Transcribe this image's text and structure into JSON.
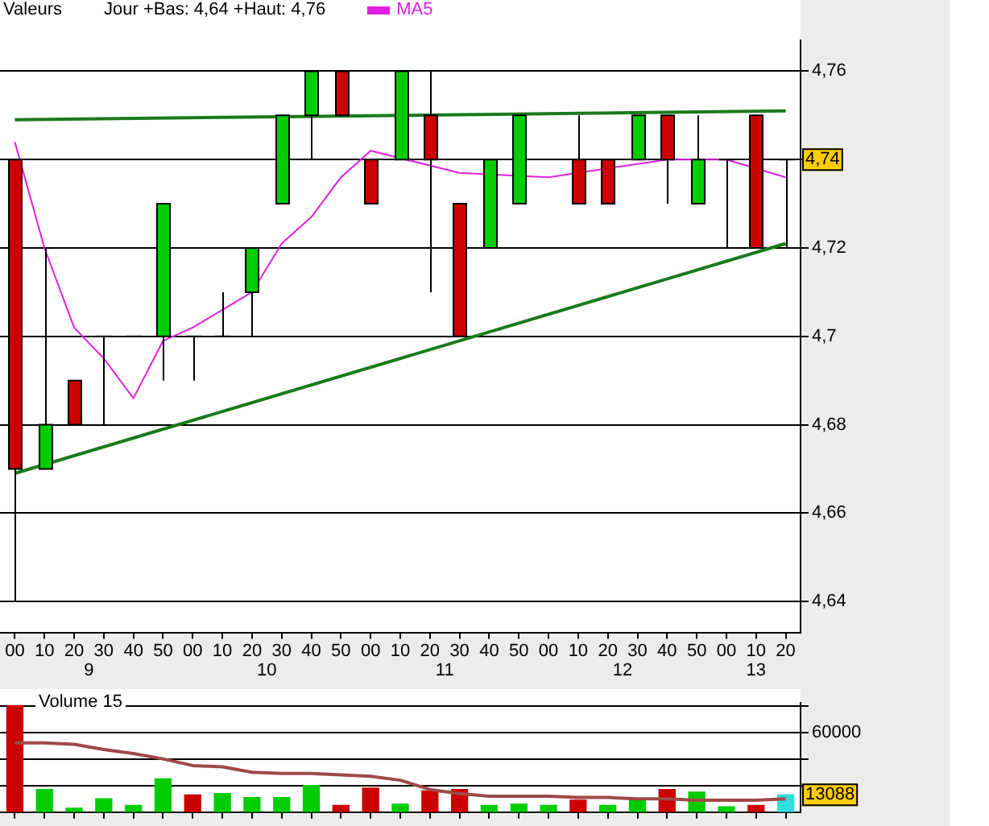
{
  "chart_data": [
    {
      "type": "candlestick",
      "title": "Valeurs",
      "subtitle": "Jour +Bas: 4,64 +Haut: 4,76",
      "legend": "top left",
      "grid": "y",
      "marker": "none",
      "categories": [
        "00",
        "10",
        "20",
        "30",
        "40",
        "50",
        "00",
        "10",
        "20",
        "30",
        "40",
        "50",
        "00",
        "10",
        "20",
        "30",
        "40",
        "50",
        "00",
        "10",
        "20",
        "30",
        "40",
        "50",
        "00",
        "10",
        "20"
      ],
      "ylim": [
        4.633,
        4.767
      ],
      "yticks": [
        {
          "value": 4.64,
          "label": "4,64"
        },
        {
          "value": 4.66,
          "label": "4,66"
        },
        {
          "value": 4.68,
          "label": "4,68"
        },
        {
          "value": 4.7,
          "label": "4,7"
        },
        {
          "value": 4.72,
          "label": "4,72"
        },
        {
          "value": 4.74,
          "label": null
        },
        {
          "value": 4.76,
          "label": "4,76"
        }
      ],
      "annotations": [
        "9",
        "10",
        "11",
        "12",
        "13",
        {
          "text": "4,74",
          "y": 4.74
        }
      ],
      "series": [
        {
          "ohlc": [
            [
              4.74,
              4.74,
              4.64,
              4.67
            ],
            [
              4.67,
              4.72,
              4.67,
              4.68
            ],
            [
              4.69,
              4.69,
              4.68,
              4.68
            ],
            [
              4.7,
              4.7,
              4.68,
              4.7
            ],
            [
              4.7,
              4.7,
              4.7,
              4.7
            ],
            [
              4.7,
              4.73,
              4.69,
              4.73
            ],
            [
              4.7,
              4.7,
              4.69,
              4.7
            ],
            [
              4.7,
              4.71,
              4.7,
              4.7
            ],
            [
              4.71,
              4.72,
              4.7,
              4.72
            ],
            [
              4.73,
              4.75,
              4.73,
              4.75
            ],
            [
              4.75,
              4.76,
              4.74,
              4.76
            ],
            [
              4.76,
              4.76,
              4.75,
              4.75
            ],
            [
              4.74,
              4.74,
              4.73,
              4.73
            ],
            [
              4.74,
              4.76,
              4.74,
              4.76
            ],
            [
              4.75,
              4.76,
              4.71,
              4.74
            ],
            [
              4.73,
              4.73,
              4.7,
              4.7
            ],
            [
              4.72,
              4.74,
              4.72,
              4.74
            ],
            [
              4.73,
              4.75,
              4.73,
              4.75
            ],
            null,
            [
              4.74,
              4.75,
              4.73,
              4.73
            ],
            [
              4.74,
              4.74,
              4.73,
              4.73
            ],
            [
              4.74,
              4.75,
              4.74,
              4.75
            ],
            [
              4.75,
              4.75,
              4.73,
              4.74
            ],
            [
              4.73,
              4.75,
              4.73,
              4.74
            ],
            [
              4.74,
              4.74,
              4.72,
              4.74
            ],
            [
              4.75,
              4.75,
              4.72,
              4.72
            ],
            [
              4.74,
              4.74,
              4.72,
              4.74
            ]
          ],
          "colors": [
            "#cc0000",
            "#00cc00",
            "#cc0000",
            null,
            null,
            "#00cc00",
            null,
            null,
            "#00cc00",
            "#00cc00",
            "#00cc00",
            "#cc0000",
            "#cc0000",
            "#00cc00",
            "#cc0000",
            "#cc0000",
            "#00cc00",
            "#00cc00",
            null,
            "#cc0000",
            "#cc0000",
            "#00cc00",
            "#cc0000",
            "#00cc00",
            null,
            "#cc0000",
            null
          ]
        },
        {
          "type": "line",
          "name": "MA5",
          "color": "#e020e0",
          "values": [
            4.744,
            4.72,
            4.702,
            4.695,
            4.686,
            4.699,
            4.702,
            4.706,
            4.71,
            4.721,
            4.727,
            4.736,
            4.742,
            null,
            null,
            4.737,
            null,
            null,
            4.736,
            null,
            null,
            null,
            4.74,
            null,
            4.74,
            null,
            4.736
          ]
        },
        {
          "type": "line",
          "color": "#1a7a1a",
          "values": [
            4.749,
            null,
            null,
            null,
            null,
            null,
            null,
            null,
            null,
            null,
            null,
            null,
            null,
            null,
            null,
            null,
            null,
            null,
            null,
            null,
            null,
            null,
            null,
            null,
            null,
            null,
            4.751
          ]
        },
        {
          "type": "line",
          "color": "#1a7a1a",
          "values": [
            4.669,
            null,
            null,
            null,
            null,
            null,
            null,
            null,
            null,
            null,
            null,
            null,
            null,
            null,
            null,
            null,
            null,
            null,
            null,
            null,
            null,
            null,
            null,
            null,
            null,
            null,
            4.721
          ]
        }
      ]
    },
    {
      "type": "bar",
      "title": "Volume 15",
      "grid": "y",
      "marker": "none",
      "tick_labels": "y",
      "categories": [
        "00",
        "10",
        "20",
        "30",
        "40",
        "50",
        "00",
        "10",
        "20",
        "30",
        "40",
        "50",
        "00",
        "10",
        "20",
        "30",
        "40",
        "50",
        "00",
        "10",
        "20",
        "30",
        "40",
        "50",
        "00",
        "10",
        "20"
      ],
      "ylim": [
        0,
        82000
      ],
      "yticks": [
        {
          "value": 20000,
          "label": null
        },
        {
          "value": 40000,
          "label": null
        },
        60000,
        {
          "value": 80000,
          "label": null
        }
      ],
      "annotations": [
        {
          "text": "13088",
          "y": 13088
        }
      ],
      "series": [
        {
          "values": [
            80000,
            17000,
            3000,
            10000,
            5000,
            25000,
            13000,
            14000,
            11000,
            11000,
            20000,
            5000,
            18000,
            6000,
            16000,
            17000,
            5000,
            6000,
            5000,
            9000,
            5000,
            10000,
            17000,
            15000,
            4000,
            5000,
            13088
          ],
          "colors": [
            "#cc0000",
            "#00cc00",
            "#00cc00",
            "#00cc00",
            "#00cc00",
            "#00cc00",
            "#cc0000",
            "#00cc00",
            "#00cc00",
            "#00cc00",
            "#00cc00",
            "#cc0000",
            "#cc0000",
            "#00cc00",
            "#cc0000",
            "#cc0000",
            "#00cc00",
            "#00cc00",
            "#00cc00",
            "#cc0000",
            "#00cc00",
            "#00cc00",
            "#cc0000",
            "#00cc00",
            "#00cc00",
            "#cc0000",
            "#33dddd"
          ]
        },
        {
          "type": "line",
          "color": "#a04848",
          "values": [
            52000,
            52000,
            51000,
            47000,
            44000,
            40000,
            35000,
            34000,
            30000,
            29000,
            29000,
            28000,
            27000,
            24000,
            17000,
            14000,
            12000,
            12000,
            12000,
            11000,
            11000,
            10000,
            10000,
            9000,
            9000,
            9000,
            10000
          ]
        }
      ]
    }
  ]
}
